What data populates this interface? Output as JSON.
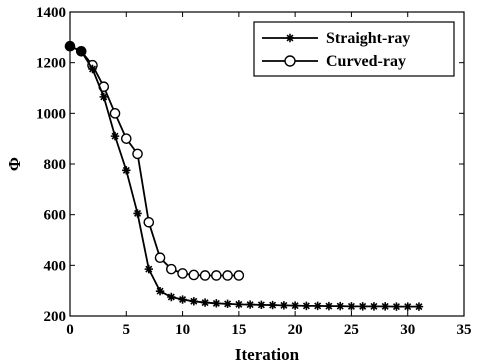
{
  "chart_data": {
    "type": "line",
    "xlabel": "Iteration",
    "ylabel": "Φ",
    "xlim": [
      0,
      35
    ],
    "ylim": [
      200,
      1400
    ],
    "xticks": [
      "0",
      "5",
      "10",
      "15",
      "20",
      "25",
      "30",
      "35"
    ],
    "yticks": [
      "200",
      "400",
      "600",
      "800",
      "1000",
      "1200",
      "1400"
    ],
    "grid": false,
    "legend_position": "top-right",
    "series": [
      {
        "name": "Straight-ray",
        "marker": "asterisk",
        "color": "#000000",
        "x": [
          0,
          1,
          2,
          3,
          4,
          5,
          6,
          7,
          8,
          9,
          10,
          11,
          12,
          13,
          14,
          15,
          16,
          17,
          18,
          19,
          20,
          21,
          22,
          23,
          24,
          25,
          26,
          27,
          28,
          29,
          30,
          31
        ],
        "y": [
          1265,
          1245,
          1175,
          1065,
          910,
          775,
          605,
          385,
          298,
          275,
          265,
          258,
          253,
          250,
          248,
          246,
          245,
          244,
          243,
          242,
          241,
          240,
          240,
          239,
          239,
          238,
          238,
          238,
          238,
          237,
          237,
          237
        ]
      },
      {
        "name": "Curved-ray",
        "marker": "open-circle",
        "color": "#000000",
        "x": [
          0,
          1,
          2,
          3,
          4,
          5,
          6,
          7,
          8,
          9,
          10,
          11,
          12,
          13,
          14,
          15
        ],
        "y": [
          1265,
          1245,
          1190,
          1105,
          1000,
          900,
          840,
          570,
          430,
          385,
          368,
          362,
          360,
          360,
          360,
          360
        ]
      }
    ]
  }
}
